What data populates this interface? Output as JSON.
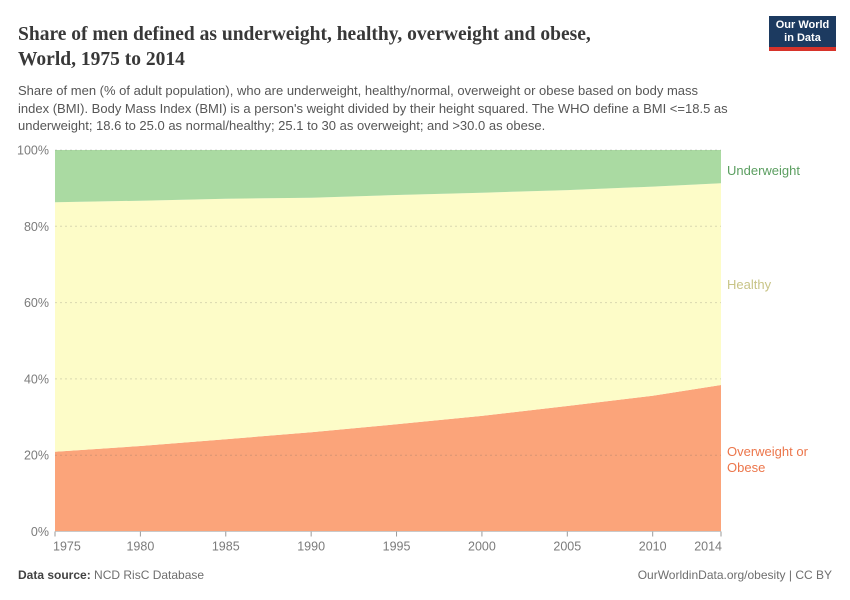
{
  "header": {
    "title_lines": [
      "Share of men defined as underweight, healthy, overweight and obese,",
      "World, 1975 to 2014"
    ],
    "subtitle_lines": [
      "Share of men (% of adult population), who are underweight, healthy/normal, overweight or obese based on body mass",
      "index (BMI). Body Mass Index (BMI) is a person's weight divided by their height squared. The WHO define a BMI <=18.5 as",
      "underweight; 18.6 to 25.0 as normal/healthy; 25.1 to 30 as overweight; and >30.0 as obese."
    ]
  },
  "logo": {
    "line1": "Our World",
    "line2": "in Data",
    "bg_color": "#1c3a60",
    "bar_color": "#d7332a"
  },
  "chart_data": {
    "type": "area",
    "stacked": true,
    "title": "Share of men defined as underweight, healthy, overweight and obese, World, 1975 to 2014",
    "x": [
      1975,
      1980,
      1985,
      1990,
      1995,
      2000,
      2005,
      2010,
      2014
    ],
    "x_range": [
      1975,
      2014
    ],
    "x_ticks": [
      1975,
      1980,
      1985,
      1990,
      1995,
      2000,
      2005,
      2010,
      2014
    ],
    "y_range": [
      0,
      100
    ],
    "y_ticks": [
      0,
      20,
      40,
      60,
      80,
      100
    ],
    "y_tick_suffix": "%",
    "grid": "dashed-horizontal",
    "legend_position": "right",
    "axis_color": "#c9c9c9",
    "tick_color": "#9a9a9a",
    "grid_color": "rgba(90,90,90,0.22)",
    "series": [
      {
        "name": "Overweight or Obese",
        "values": [
          20.9,
          22.4,
          24.2,
          26.0,
          28.1,
          30.3,
          32.9,
          35.6,
          38.4
        ],
        "color": "#fba47a",
        "label_color": "#ec764b"
      },
      {
        "name": "Healthy",
        "values": [
          65.4,
          64.3,
          63.0,
          61.5,
          60.1,
          58.5,
          56.6,
          54.8,
          52.9
        ],
        "color": "#fdfcc8",
        "label_color": "#c8c487"
      },
      {
        "name": "Underweight",
        "values": [
          13.7,
          13.3,
          12.8,
          12.5,
          11.8,
          11.2,
          10.5,
          9.6,
          8.7
        ],
        "color": "#aadaa2",
        "label_color": "#5b9e60"
      }
    ]
  },
  "footer": {
    "datasource_label": "Data source:",
    "datasource_value": " NCD RisC Database",
    "credit": "OurWorldinData.org/obesity | CC BY"
  }
}
